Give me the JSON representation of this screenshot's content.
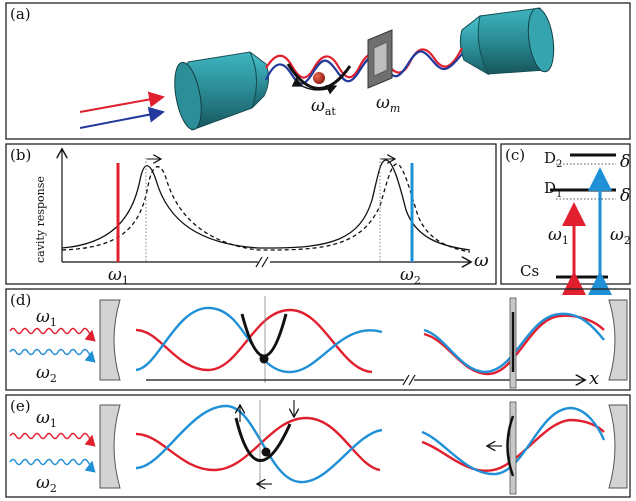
{
  "panels": {
    "a": {
      "tag": "(a)",
      "omega_at": "ω",
      "omega_at_sub": "at",
      "omega_m": "ω",
      "omega_m_sub": "m"
    },
    "b": {
      "tag": "(b)",
      "ylabel": "cavity response",
      "xlabel": "ω",
      "omega1": "ω",
      "omega1_sub": "1",
      "omega2": "ω",
      "omega2_sub": "2"
    },
    "c": {
      "tag": "(c)",
      "d2": "D",
      "d2_sub": "2",
      "d1": "D",
      "d1_sub": "1",
      "delta_top": "δ",
      "delta_bottom": "δ",
      "omega1": "ω",
      "omega1_sub": "1",
      "omega2": "ω",
      "omega2_sub": "2",
      "cs": "Cs"
    },
    "d": {
      "tag": "(d)",
      "omega1": "ω",
      "omega1_sub": "1",
      "omega2": "ω",
      "omega2_sub": "2",
      "xlabel": "x"
    },
    "e": {
      "tag": "(e)",
      "omega1": "ω",
      "omega1_sub": "1",
      "omega2": "ω",
      "omega2_sub": "2"
    }
  },
  "colors": {
    "red": "#e0202e",
    "blue": "#1f8fd6",
    "teal": "#2f8f98",
    "dark_blue": "#23399b",
    "mirror_gray": "#d3d3d3"
  }
}
